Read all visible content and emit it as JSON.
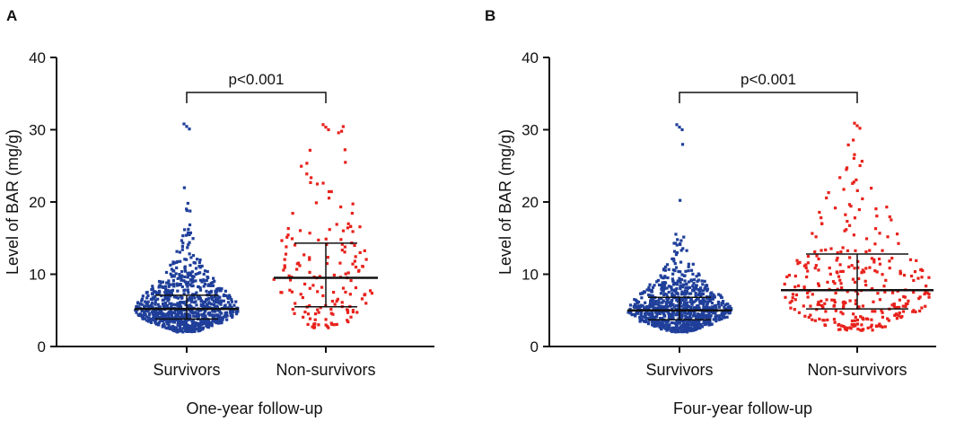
{
  "colors": {
    "survivors": "#1f3f9a",
    "non_survivors": "#e8211b",
    "axis": "#111111"
  },
  "chart_data": [
    {
      "panel_label": "A",
      "type": "scatter",
      "subtype": "dot-plot-with-median-IQR",
      "ylabel": "Level of BAR (mg/g)",
      "xlabel": "One-year follow-up",
      "categories": [
        "Survivors",
        "Non-survivors"
      ],
      "ylim": [
        0,
        40
      ],
      "yticks": [
        0,
        10,
        20,
        30,
        40
      ],
      "annotation": "p<0.001",
      "series": [
        {
          "name": "Survivors",
          "median": 5.2,
          "q1": 3.8,
          "q3": 7.1,
          "min": 2.0,
          "max": 30.8,
          "n": 900
        },
        {
          "name": "Non-survivors",
          "median": 9.5,
          "q1": 5.5,
          "q3": 14.3,
          "min": 2.5,
          "max": 30.7,
          "n": 170
        }
      ]
    },
    {
      "panel_label": "B",
      "type": "scatter",
      "subtype": "dot-plot-with-median-IQR",
      "ylabel": "Level of BAR (mg/g)",
      "xlabel": "Four-year follow-up",
      "categories": [
        "Survivors",
        "Non-survivors"
      ],
      "ylim": [
        0,
        40
      ],
      "yticks": [
        0,
        10,
        20,
        30,
        40
      ],
      "annotation": "p<0.001",
      "series": [
        {
          "name": "Survivors",
          "median": 5.0,
          "q1": 3.7,
          "q3": 6.8,
          "min": 2.0,
          "max": 30.7,
          "n": 850
        },
        {
          "name": "Non-survivors",
          "median": 7.8,
          "q1": 5.2,
          "q3": 12.8,
          "min": 2.2,
          "max": 30.9,
          "n": 320
        }
      ]
    }
  ]
}
